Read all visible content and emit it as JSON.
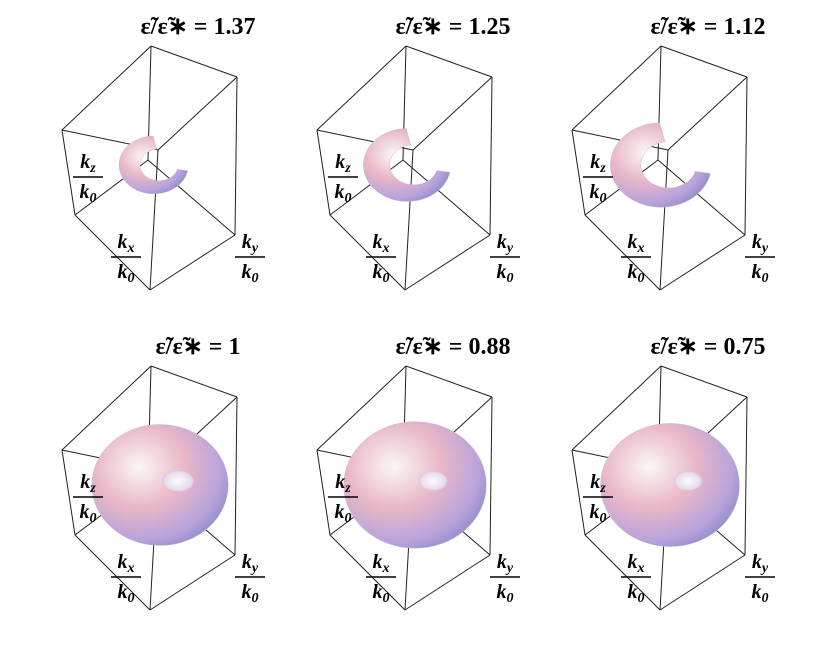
{
  "title_lhs": "ε̃/ε̃∗ = ",
  "panels": [
    {
      "value": "1.37"
    },
    {
      "value": "1.25"
    },
    {
      "value": "1.12"
    },
    {
      "value": "1"
    },
    {
      "value": "0.88"
    },
    {
      "value": "0.75"
    }
  ],
  "axis_labels": {
    "symbol": "k",
    "z": "z",
    "x": "x",
    "y": "y",
    "norm": "0"
  }
}
